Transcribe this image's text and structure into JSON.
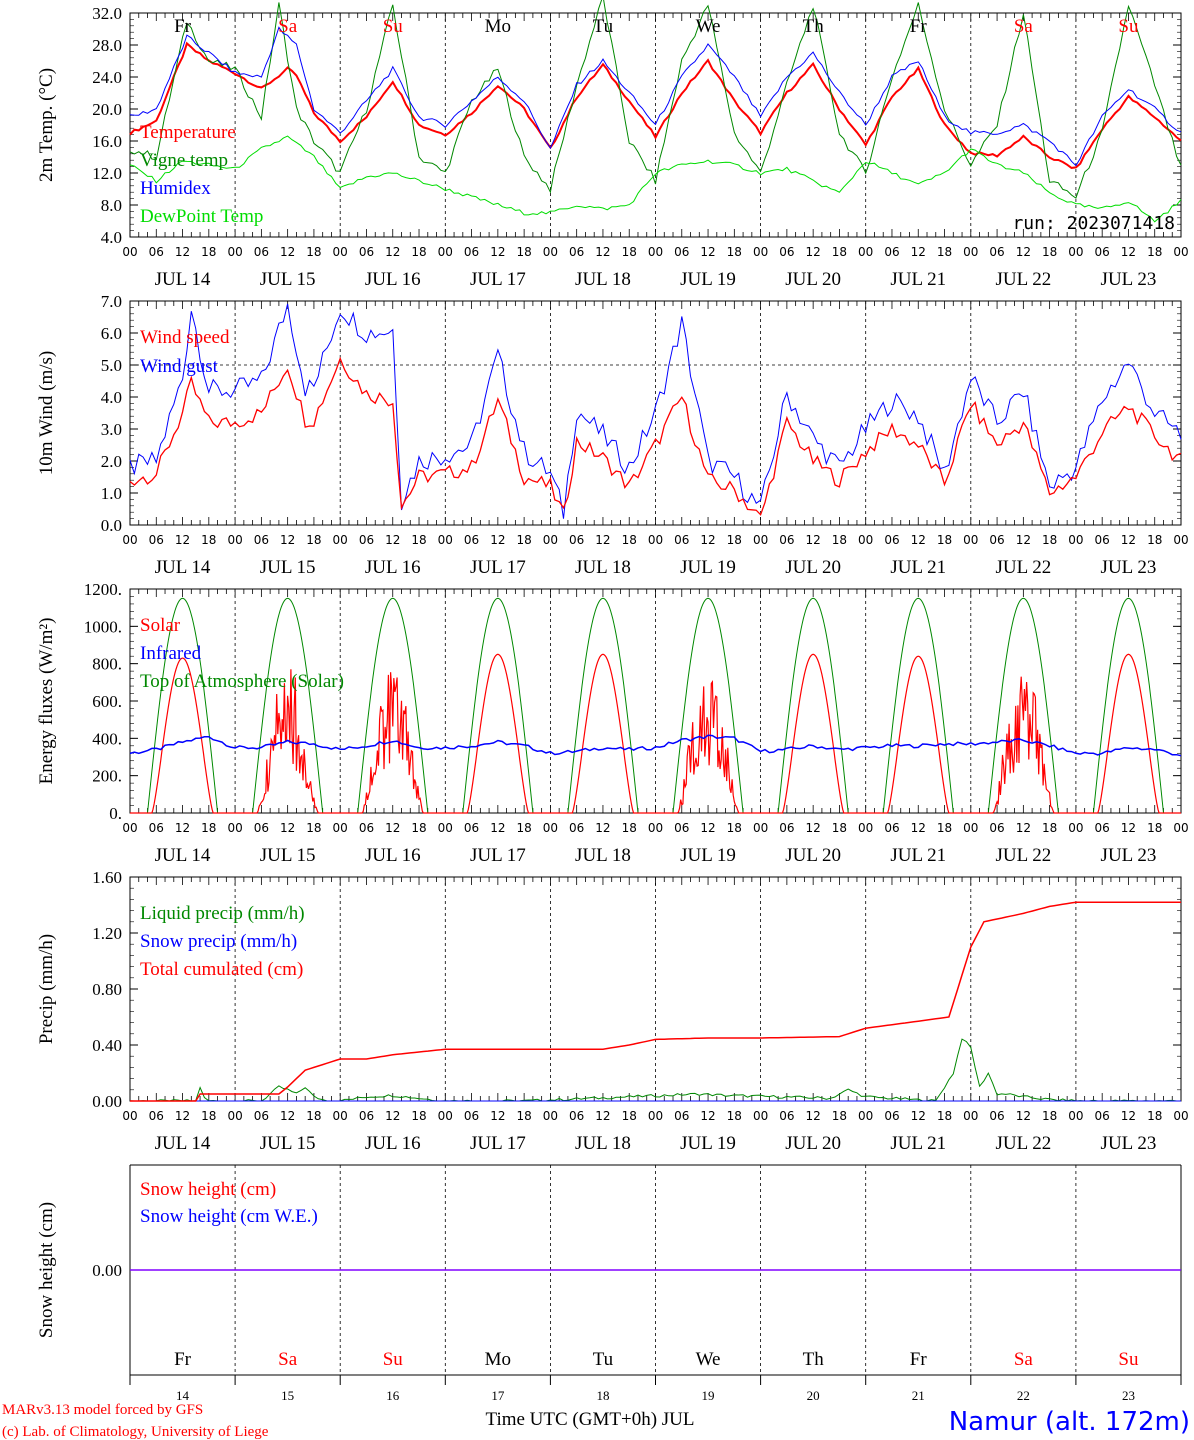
{
  "footer": {
    "model_line": "MARv3.13 model forced by GFS",
    "copyright_line": "(c) Lab. of Climatology, University of Liege",
    "axis_title": "Time UTC (GMT+0h) JUL",
    "station": "Namur (alt. 172m)"
  },
  "colors": {
    "red": "#ff0000",
    "blue": "#0000ff",
    "green": "#008800",
    "lime": "#00dd00",
    "purple": "#8000ff",
    "black": "#000000"
  },
  "chart_data": [
    {
      "id": "temperature",
      "type": "line",
      "ylabel": "2m Temp. (°C)",
      "ylim": [
        4,
        32
      ],
      "yticks": [
        "4.0",
        "8.0",
        "12.0",
        "16.0",
        "20.0",
        "24.0",
        "28.0",
        "32.0"
      ],
      "hour_ticks": [
        "00",
        "06",
        "12",
        "18"
      ],
      "date_labels": [
        "JUL 14",
        "JUL 15",
        "JUL 16",
        "JUL 17",
        "JUL 18",
        "JUL 19",
        "JUL 20",
        "JUL 21",
        "JUL 22",
        "JUL 23"
      ],
      "top_day_labels": [
        "Fr",
        "Sa",
        "Su",
        "Mo",
        "Tu",
        "We",
        "Th",
        "Fr",
        "Sa",
        "Su"
      ],
      "top_day_weekend": [
        false,
        true,
        true,
        false,
        false,
        false,
        false,
        false,
        true,
        true
      ],
      "annotation": "run: 2023071418",
      "series": [
        {
          "name": "Temperature",
          "color": "#ff0000",
          "x": [
            0,
            6,
            13,
            18,
            24,
            30,
            36,
            38,
            42,
            48,
            54,
            60,
            66,
            72,
            78,
            84,
            90,
            96,
            102,
            108,
            114,
            120,
            126,
            132,
            138,
            144,
            150,
            156,
            162,
            168,
            174,
            180,
            186,
            192,
            198,
            204,
            210,
            216,
            222,
            228,
            234,
            240
          ],
          "values": [
            17,
            18.5,
            28,
            26,
            24.5,
            22.5,
            25,
            24.2,
            19.5,
            16,
            19,
            23.5,
            18,
            16.8,
            19.5,
            23,
            20,
            15,
            21.5,
            25.5,
            21,
            16.5,
            22,
            26,
            21,
            17,
            22,
            25.5,
            20,
            15.5,
            21.5,
            25,
            18,
            14.5,
            14.2,
            16.5,
            14,
            12.5,
            17.5,
            21.5,
            19,
            16
          ]
        },
        {
          "name": "Vigne temp",
          "color": "#008800",
          "x": [
            0,
            6,
            13,
            18,
            24,
            30,
            34,
            38,
            42,
            48,
            54,
            60,
            66,
            72,
            78,
            84,
            90,
            96,
            102,
            108,
            114,
            120,
            126,
            132,
            138,
            144,
            150,
            156,
            162,
            168,
            174,
            180,
            186,
            192,
            198,
            204,
            210,
            216,
            222,
            228,
            234,
            240
          ],
          "values": [
            15,
            14,
            31,
            26,
            25,
            19,
            33,
            20,
            16,
            12,
            20,
            33,
            14,
            12,
            21,
            25,
            14,
            10,
            23,
            34,
            16,
            11,
            26,
            33,
            17,
            12,
            23,
            33,
            17,
            12,
            24,
            33,
            20,
            13,
            18,
            32,
            11,
            9,
            17,
            33,
            23,
            12.5
          ]
        },
        {
          "name": "Humidex",
          "color": "#0000ff",
          "x": [
            0,
            6,
            13,
            18,
            24,
            30,
            34,
            38,
            42,
            48,
            54,
            60,
            66,
            72,
            78,
            84,
            90,
            96,
            102,
            108,
            114,
            120,
            126,
            132,
            138,
            144,
            150,
            156,
            162,
            168,
            174,
            180,
            186,
            192,
            198,
            204,
            210,
            216,
            222,
            228,
            234,
            240
          ],
          "values": [
            19,
            20,
            29,
            27,
            24.5,
            24,
            30,
            28,
            20,
            17,
            21,
            25,
            19,
            18,
            21,
            24,
            21,
            15,
            23,
            26,
            22,
            18,
            24,
            28,
            24,
            19,
            24,
            27,
            22,
            18,
            24,
            26,
            19,
            17,
            17,
            18,
            16,
            13,
            19,
            22.5,
            20,
            17
          ]
        },
        {
          "name": "DewPoint Temp",
          "color": "#00dd00",
          "x": [
            0,
            6,
            12,
            18,
            24,
            30,
            36,
            42,
            48,
            54,
            60,
            66,
            72,
            78,
            84,
            90,
            96,
            102,
            108,
            114,
            120,
            126,
            132,
            138,
            144,
            150,
            156,
            162,
            168,
            174,
            180,
            186,
            192,
            198,
            204,
            210,
            216,
            222,
            228,
            234,
            240
          ],
          "values": [
            13,
            11,
            13.5,
            13,
            12.5,
            15,
            16.5,
            14,
            10,
            11.5,
            12,
            11,
            10,
            9,
            8,
            7,
            7,
            8,
            7.5,
            8,
            12,
            13,
            13.5,
            13,
            12,
            12.5,
            11,
            9.5,
            13.5,
            12,
            10.5,
            12,
            15,
            13,
            12,
            9.5,
            8,
            7.5,
            8.5,
            6,
            8.5
          ]
        }
      ]
    },
    {
      "id": "wind",
      "type": "line",
      "ylabel": "10m Wind (m/s)",
      "ylim": [
        0,
        7
      ],
      "yticks": [
        "0.0",
        "1.0",
        "2.0",
        "3.0",
        "4.0",
        "5.0",
        "6.0",
        "7.0"
      ],
      "hour_ticks": [
        "00",
        "06",
        "12",
        "18"
      ],
      "date_labels": [
        "JUL 14",
        "JUL 15",
        "JUL 16",
        "JUL 17",
        "JUL 18",
        "JUL 19",
        "JUL 20",
        "JUL 21",
        "JUL 22",
        "JUL 23"
      ],
      "reference_line": 5.0,
      "series": [
        {
          "name": "Wind speed",
          "color": "#ff0000",
          "x": [
            0,
            6,
            12,
            14,
            18,
            24,
            30,
            36,
            40,
            42,
            48,
            54,
            60,
            62,
            66,
            72,
            78,
            84,
            90,
            96,
            99,
            102,
            108,
            114,
            120,
            126,
            132,
            138,
            144,
            150,
            156,
            162,
            168,
            174,
            180,
            186,
            192,
            198,
            204,
            210,
            216,
            222,
            228,
            234,
            240
          ],
          "values": [
            1.4,
            1.6,
            3.5,
            4.4,
            3.2,
            3.2,
            3.5,
            5,
            3.3,
            3.3,
            5.2,
            4.1,
            3.9,
            0.6,
            1.5,
            1.6,
            1.8,
            3.9,
            1.5,
            1.2,
            0.3,
            2.6,
            2.1,
            1.2,
            2.5,
            4,
            1.4,
            1.1,
            0.2,
            3.2,
            2,
            1.4,
            2.3,
            3.0,
            2.5,
            1.3,
            3.8,
            2.5,
            3.2,
            1.0,
            1.5,
            2.9,
            3.7,
            2.8,
            2.0
          ]
        },
        {
          "name": "Wind gust",
          "color": "#0000ff",
          "x": [
            0,
            6,
            12,
            14,
            18,
            24,
            30,
            36,
            40,
            42,
            48,
            54,
            60,
            62,
            66,
            72,
            78,
            84,
            90,
            96,
            99,
            102,
            108,
            114,
            120,
            126,
            132,
            138,
            144,
            150,
            156,
            162,
            168,
            174,
            180,
            186,
            192,
            198,
            204,
            210,
            216,
            222,
            228,
            234,
            240
          ],
          "values": [
            1.8,
            2.0,
            4.6,
            6.8,
            4.2,
            4.2,
            4.5,
            6.9,
            4.3,
            4.3,
            6.8,
            6.0,
            6.1,
            0.8,
            2.0,
            2.2,
            2.5,
            5.3,
            2.3,
            1.6,
            0.4,
            3.6,
            2.8,
            1.8,
            3.5,
            6.3,
            2.0,
            1.5,
            0.5,
            4.1,
            2.7,
            1.8,
            3.0,
            3.9,
            3.4,
            1.6,
            4.6,
            3.2,
            4.2,
            1.2,
            1.8,
            3.9,
            5.1,
            3.5,
            2.8
          ]
        }
      ]
    },
    {
      "id": "energy",
      "type": "line",
      "ylabel": "Energy fluxes (W/m²)",
      "ylim": [
        0,
        1200
      ],
      "yticks": [
        "0.",
        "200.",
        "400.",
        "600.",
        "800.",
        "1000.",
        "1200."
      ],
      "hour_ticks": [
        "00",
        "06",
        "12",
        "18"
      ],
      "date_labels": [
        "JUL 14",
        "JUL 15",
        "JUL 16",
        "JUL 17",
        "JUL 18",
        "JUL 19",
        "JUL 20",
        "JUL 21",
        "JUL 22",
        "JUL 23"
      ],
      "solar_peaks": [
        830,
        830,
        840,
        850,
        850,
        830,
        850,
        840,
        810,
        850
      ],
      "toa_peak": 1150,
      "series": [
        {
          "name": "Solar",
          "color": "#ff0000"
        },
        {
          "name": "Infrared",
          "color": "#0000ff",
          "x": [
            0,
            6,
            12,
            18,
            24,
            30,
            36,
            42,
            48,
            54,
            60,
            66,
            72,
            78,
            84,
            90,
            96,
            102,
            108,
            114,
            120,
            126,
            132,
            138,
            144,
            150,
            156,
            162,
            168,
            174,
            180,
            186,
            192,
            198,
            204,
            210,
            216,
            222,
            228,
            234,
            240
          ],
          "values": [
            320,
            340,
            380,
            410,
            350,
            350,
            380,
            370,
            340,
            360,
            390,
            350,
            350,
            360,
            380,
            360,
            320,
            330,
            350,
            340,
            350,
            390,
            410,
            400,
            330,
            340,
            360,
            340,
            350,
            360,
            360,
            370,
            370,
            380,
            390,
            360,
            320,
            320,
            350,
            340,
            310
          ]
        },
        {
          "name": "Top of Atmosphere (Solar)",
          "color": "#008800"
        }
      ]
    },
    {
      "id": "precip",
      "type": "line",
      "ylabel": "Precip (mm/h)",
      "ylim": [
        0,
        1.6
      ],
      "yticks": [
        "0.00",
        "0.40",
        "0.80",
        "1.20",
        "1.60"
      ],
      "hour_ticks": [
        "00",
        "06",
        "12",
        "18"
      ],
      "date_labels": [
        "JUL 14",
        "JUL 15",
        "JUL 16",
        "JUL 17",
        "JUL 18",
        "JUL 19",
        "JUL 20",
        "JUL 21",
        "JUL 22",
        "JUL 23"
      ],
      "series": [
        {
          "name": "Liquid precip (mm/h)",
          "color": "#008800",
          "x": [
            0,
            15,
            16,
            17,
            18,
            19,
            20,
            30,
            32,
            34,
            36,
            38,
            40,
            42,
            44,
            48,
            54,
            60,
            66,
            72,
            90,
            130,
            136,
            160,
            164,
            168,
            184,
            188,
            190,
            192,
            194,
            196,
            198,
            200,
            204,
            210,
            216,
            240
          ],
          "values": [
            0,
            0,
            0.1,
            0.02,
            0,
            0,
            0,
            0,
            0.05,
            0.1,
            0.08,
            0.05,
            0.1,
            0.03,
            0.01,
            0,
            0.03,
            0.04,
            0.02,
            0,
            0,
            0.05,
            0.04,
            0.02,
            0.08,
            0.03,
            0,
            0.2,
            0.45,
            0.38,
            0.1,
            0.2,
            0.05,
            0.05,
            0.03,
            0.01,
            0,
            0
          ]
        },
        {
          "name": "Snow precip (mm/h)",
          "color": "#0000ff",
          "x": [
            0,
            240
          ],
          "values": [
            0,
            0
          ]
        },
        {
          "name": "Total cumulated (cm)",
          "color": "#ff0000",
          "x": [
            0,
            15,
            16,
            17,
            34,
            36,
            40,
            44,
            48,
            54,
            60,
            66,
            72,
            96,
            108,
            114,
            120,
            132,
            144,
            162,
            168,
            180,
            187,
            189,
            192,
            195,
            204,
            210,
            216,
            240
          ],
          "values": [
            0,
            0,
            0.05,
            0.05,
            0.05,
            0.1,
            0.22,
            0.26,
            0.3,
            0.3,
            0.33,
            0.35,
            0.37,
            0.37,
            0.37,
            0.4,
            0.44,
            0.45,
            0.45,
            0.46,
            0.52,
            0.57,
            0.6,
            0.8,
            1.1,
            1.28,
            1.34,
            1.39,
            1.42,
            1.42
          ]
        }
      ]
    },
    {
      "id": "snow",
      "type": "line",
      "ylabel": "Snow height (cm)",
      "ytick_label": "0.00",
      "day_labels": [
        "Fr",
        "Sa",
        "Su",
        "Mo",
        "Tu",
        "We",
        "Th",
        "Fr",
        "Sa",
        "Su"
      ],
      "day_weekend": [
        false,
        true,
        true,
        false,
        false,
        false,
        false,
        false,
        true,
        true
      ],
      "day_numbers": [
        "14",
        "15",
        "16",
        "17",
        "18",
        "19",
        "20",
        "21",
        "22",
        "23"
      ],
      "series": [
        {
          "name": "Snow height (cm)",
          "color": "#ff0000",
          "x": [
            0,
            240
          ],
          "values": [
            0,
            0
          ]
        },
        {
          "name": "Snow height (cm W.E.)",
          "color": "#0000ff",
          "x": [
            0,
            240
          ],
          "values": [
            0,
            0
          ]
        }
      ]
    }
  ]
}
